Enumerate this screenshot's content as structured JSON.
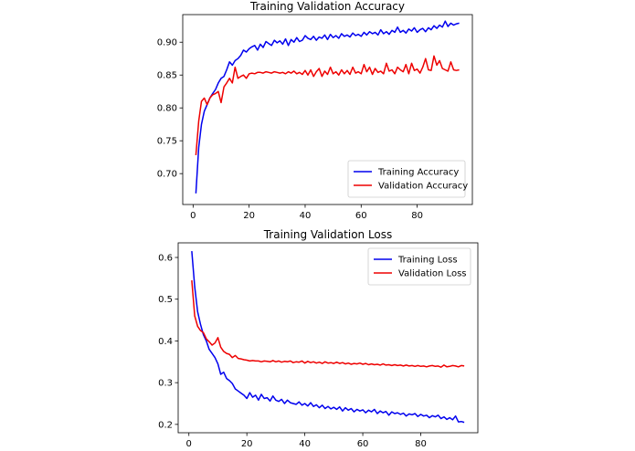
{
  "chart_data": [
    {
      "type": "line",
      "title": "Training Validation Accuracy",
      "xlabel": "",
      "ylabel": "",
      "xlim": [
        -3.7,
        99.7
      ],
      "ylim": [
        0.653,
        0.942
      ],
      "xticks": [
        0,
        20,
        40,
        60,
        80
      ],
      "xtick_labels": [
        "0",
        "20",
        "40",
        "60",
        "80"
      ],
      "yticks": [
        0.7,
        0.75,
        0.8,
        0.85,
        0.9
      ],
      "ytick_labels": [
        "0.70",
        "0.75",
        "0.80",
        "0.85",
        "0.90"
      ],
      "legend_position": "lower-right",
      "grid": false,
      "series": [
        {
          "name": "Training Accuracy",
          "color": "#0000ee",
          "x": [
            1,
            2,
            3,
            4,
            5,
            6,
            7,
            8,
            9,
            10,
            11,
            12,
            13,
            14,
            15,
            16,
            17,
            18,
            19,
            20,
            21,
            22,
            23,
            24,
            25,
            26,
            27,
            28,
            29,
            30,
            31,
            32,
            33,
            34,
            35,
            36,
            37,
            38,
            39,
            40,
            41,
            42,
            43,
            44,
            45,
            46,
            47,
            48,
            49,
            50,
            51,
            52,
            53,
            54,
            55,
            56,
            57,
            58,
            59,
            60,
            61,
            62,
            63,
            64,
            65,
            66,
            67,
            68,
            69,
            70,
            71,
            72,
            73,
            74,
            75,
            76,
            77,
            78,
            79,
            80,
            81,
            82,
            83,
            84,
            85,
            86,
            87,
            88,
            89,
            90,
            91,
            92,
            93,
            94,
            95
          ],
          "y": [
            0.67,
            0.74,
            0.775,
            0.795,
            0.805,
            0.815,
            0.822,
            0.828,
            0.838,
            0.845,
            0.848,
            0.858,
            0.87,
            0.865,
            0.872,
            0.875,
            0.88,
            0.888,
            0.885,
            0.89,
            0.893,
            0.895,
            0.888,
            0.897,
            0.892,
            0.901,
            0.898,
            0.895,
            0.903,
            0.899,
            0.902,
            0.897,
            0.905,
            0.895,
            0.904,
            0.9,
            0.907,
            0.901,
            0.903,
            0.91,
            0.906,
            0.904,
            0.909,
            0.903,
            0.908,
            0.906,
            0.911,
            0.904,
            0.912,
            0.907,
            0.91,
            0.906,
            0.913,
            0.909,
            0.911,
            0.908,
            0.914,
            0.91,
            0.912,
            0.909,
            0.915,
            0.911,
            0.916,
            0.913,
            0.915,
            0.911,
            0.919,
            0.913,
            0.916,
            0.912,
            0.918,
            0.915,
            0.923,
            0.915,
            0.918,
            0.914,
            0.92,
            0.917,
            0.922,
            0.915,
            0.919,
            0.921,
            0.916,
            0.922,
            0.919,
            0.925,
            0.921,
            0.926,
            0.923,
            0.932,
            0.924,
            0.929,
            0.926,
            0.928,
            0.929
          ]
        },
        {
          "name": "Validation Accuracy",
          "color": "#ee0000",
          "x": [
            1,
            2,
            3,
            4,
            5,
            6,
            7,
            8,
            9,
            10,
            11,
            12,
            13,
            14,
            15,
            16,
            17,
            18,
            19,
            20,
            21,
            22,
            23,
            24,
            25,
            26,
            27,
            28,
            29,
            30,
            31,
            32,
            33,
            34,
            35,
            36,
            37,
            38,
            39,
            40,
            41,
            42,
            43,
            44,
            45,
            46,
            47,
            48,
            49,
            50,
            51,
            52,
            53,
            54,
            55,
            56,
            57,
            58,
            59,
            60,
            61,
            62,
            63,
            64,
            65,
            66,
            67,
            68,
            69,
            70,
            71,
            72,
            73,
            74,
            75,
            76,
            77,
            78,
            79,
            80,
            81,
            82,
            83,
            84,
            85,
            86,
            87,
            88,
            89,
            90,
            91,
            92,
            93,
            94,
            95
          ],
          "y": [
            0.728,
            0.78,
            0.81,
            0.815,
            0.805,
            0.815,
            0.82,
            0.822,
            0.825,
            0.808,
            0.832,
            0.838,
            0.845,
            0.838,
            0.862,
            0.845,
            0.848,
            0.85,
            0.845,
            0.852,
            0.853,
            0.852,
            0.854,
            0.854,
            0.853,
            0.855,
            0.854,
            0.853,
            0.855,
            0.854,
            0.853,
            0.854,
            0.852,
            0.855,
            0.853,
            0.856,
            0.852,
            0.854,
            0.851,
            0.857,
            0.85,
            0.858,
            0.848,
            0.855,
            0.86,
            0.848,
            0.856,
            0.851,
            0.862,
            0.852,
            0.855,
            0.85,
            0.858,
            0.852,
            0.857,
            0.851,
            0.862,
            0.853,
            0.855,
            0.852,
            0.866,
            0.855,
            0.862,
            0.851,
            0.86,
            0.854,
            0.856,
            0.852,
            0.868,
            0.856,
            0.858,
            0.852,
            0.862,
            0.858,
            0.855,
            0.866,
            0.852,
            0.868,
            0.857,
            0.859,
            0.853,
            0.862,
            0.875,
            0.858,
            0.857,
            0.879,
            0.865,
            0.872,
            0.86,
            0.858,
            0.856,
            0.87,
            0.858,
            0.857,
            0.858
          ]
        }
      ]
    },
    {
      "type": "line",
      "title": "Training Validation Loss",
      "xlabel": "",
      "ylabel": "",
      "xlim": [
        -3.7,
        99.7
      ],
      "ylim": [
        0.18,
        0.635
      ],
      "xticks": [
        0,
        20,
        40,
        60,
        80
      ],
      "xtick_labels": [
        "0",
        "20",
        "40",
        "60",
        "80"
      ],
      "yticks": [
        0.2,
        0.3,
        0.4,
        0.5,
        0.6
      ],
      "ytick_labels": [
        "0.2",
        "0.3",
        "0.4",
        "0.5",
        "0.6"
      ],
      "legend_position": "upper-right",
      "grid": false,
      "series": [
        {
          "name": "Training Loss",
          "color": "#0000ee",
          "x": [
            1,
            2,
            3,
            4,
            5,
            6,
            7,
            8,
            9,
            10,
            11,
            12,
            13,
            14,
            15,
            16,
            17,
            18,
            19,
            20,
            21,
            22,
            23,
            24,
            25,
            26,
            27,
            28,
            29,
            30,
            31,
            32,
            33,
            34,
            35,
            36,
            37,
            38,
            39,
            40,
            41,
            42,
            43,
            44,
            45,
            46,
            47,
            48,
            49,
            50,
            51,
            52,
            53,
            54,
            55,
            56,
            57,
            58,
            59,
            60,
            61,
            62,
            63,
            64,
            65,
            66,
            67,
            68,
            69,
            70,
            71,
            72,
            73,
            74,
            75,
            76,
            77,
            78,
            79,
            80,
            81,
            82,
            83,
            84,
            85,
            86,
            87,
            88,
            89,
            90,
            91,
            92,
            93,
            94,
            95
          ],
          "y": [
            0.615,
            0.53,
            0.47,
            0.44,
            0.415,
            0.4,
            0.38,
            0.37,
            0.36,
            0.345,
            0.32,
            0.325,
            0.31,
            0.305,
            0.298,
            0.285,
            0.28,
            0.275,
            0.27,
            0.262,
            0.276,
            0.265,
            0.27,
            0.258,
            0.272,
            0.262,
            0.264,
            0.256,
            0.268,
            0.258,
            0.255,
            0.26,
            0.25,
            0.258,
            0.252,
            0.25,
            0.248,
            0.254,
            0.246,
            0.25,
            0.244,
            0.252,
            0.243,
            0.247,
            0.24,
            0.246,
            0.238,
            0.243,
            0.237,
            0.241,
            0.236,
            0.242,
            0.232,
            0.24,
            0.234,
            0.238,
            0.23,
            0.236,
            0.232,
            0.235,
            0.228,
            0.234,
            0.23,
            0.236,
            0.226,
            0.232,
            0.228,
            0.231,
            0.222,
            0.23,
            0.226,
            0.228,
            0.224,
            0.227,
            0.22,
            0.225,
            0.223,
            0.226,
            0.219,
            0.224,
            0.22,
            0.222,
            0.216,
            0.221,
            0.218,
            0.222,
            0.214,
            0.218,
            0.212,
            0.216,
            0.211,
            0.22,
            0.206,
            0.207,
            0.205
          ]
        },
        {
          "name": "Validation Loss",
          "color": "#ee0000",
          "x": [
            1,
            2,
            3,
            4,
            5,
            6,
            7,
            8,
            9,
            10,
            11,
            12,
            13,
            14,
            15,
            16,
            17,
            18,
            19,
            20,
            21,
            22,
            23,
            24,
            25,
            26,
            27,
            28,
            29,
            30,
            31,
            32,
            33,
            34,
            35,
            36,
            37,
            38,
            39,
            40,
            41,
            42,
            43,
            44,
            45,
            46,
            47,
            48,
            49,
            50,
            51,
            52,
            53,
            54,
            55,
            56,
            57,
            58,
            59,
            60,
            61,
            62,
            63,
            64,
            65,
            66,
            67,
            68,
            69,
            70,
            71,
            72,
            73,
            74,
            75,
            76,
            77,
            78,
            79,
            80,
            81,
            82,
            83,
            84,
            85,
            86,
            87,
            88,
            89,
            90,
            91,
            92,
            93,
            94,
            95
          ],
          "y": [
            0.545,
            0.46,
            0.435,
            0.425,
            0.42,
            0.405,
            0.398,
            0.39,
            0.395,
            0.408,
            0.385,
            0.375,
            0.37,
            0.368,
            0.36,
            0.365,
            0.358,
            0.357,
            0.355,
            0.354,
            0.352,
            0.353,
            0.352,
            0.352,
            0.35,
            0.352,
            0.351,
            0.35,
            0.353,
            0.35,
            0.352,
            0.349,
            0.351,
            0.35,
            0.352,
            0.348,
            0.35,
            0.349,
            0.352,
            0.347,
            0.351,
            0.348,
            0.35,
            0.347,
            0.349,
            0.346,
            0.35,
            0.347,
            0.348,
            0.346,
            0.349,
            0.346,
            0.348,
            0.345,
            0.347,
            0.344,
            0.346,
            0.345,
            0.347,
            0.344,
            0.346,
            0.343,
            0.345,
            0.343,
            0.344,
            0.342,
            0.345,
            0.342,
            0.343,
            0.341,
            0.343,
            0.341,
            0.342,
            0.34,
            0.342,
            0.34,
            0.341,
            0.339,
            0.341,
            0.339,
            0.34,
            0.338,
            0.34,
            0.341,
            0.339,
            0.34,
            0.337,
            0.342,
            0.338,
            0.339,
            0.341,
            0.34,
            0.338,
            0.341,
            0.34
          ]
        }
      ]
    }
  ]
}
